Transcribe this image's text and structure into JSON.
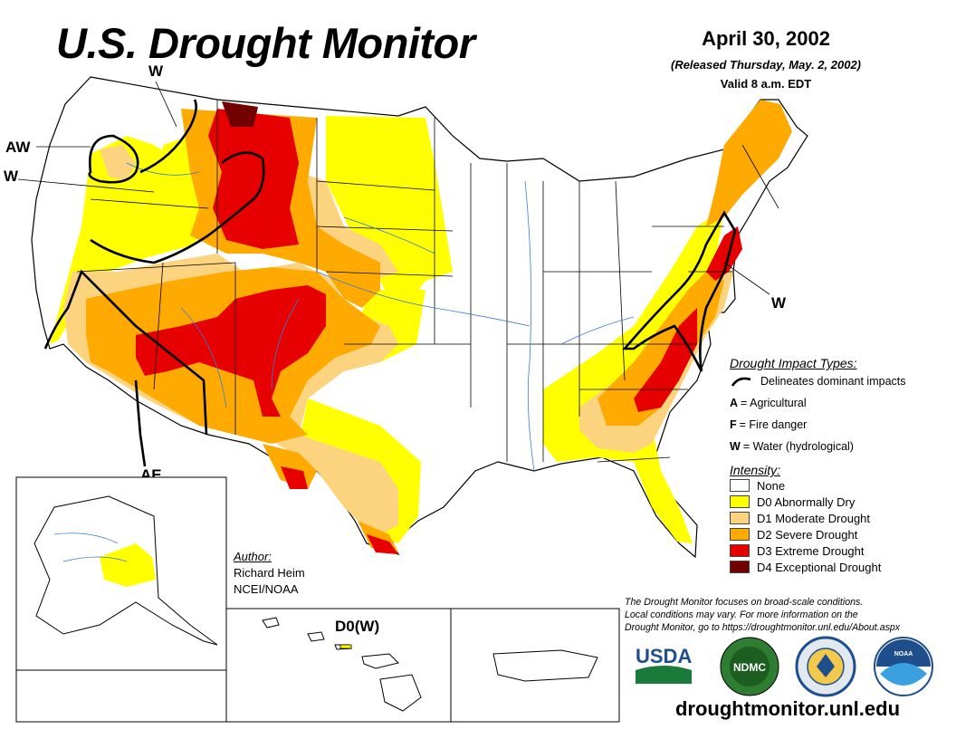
{
  "header": {
    "title": "U.S. Drought Monitor",
    "date": "April 30, 2002",
    "released": "(Released Thursday, May. 2, 2002)",
    "valid": "Valid 8 a.m. EDT"
  },
  "map": {
    "impact_labels": [
      "W",
      "AW",
      "W",
      "W",
      "AE"
    ],
    "hawaii_label": "D0(W)"
  },
  "legend": {
    "impact_title": "Drought Impact Types:",
    "impact_line_text": "Delineates dominant impacts",
    "impacts": [
      {
        "code": "A",
        "text": "= Agricultural"
      },
      {
        "code": "F",
        "text": "= Fire danger"
      },
      {
        "code": "W",
        "text": "= Water (hydrological)"
      }
    ],
    "intensity_title": "Intensity:",
    "categories": [
      {
        "label": "None",
        "color": "#ffffff"
      },
      {
        "label": "D0 Abnormally Dry",
        "color": "#ffff00"
      },
      {
        "label": "D1 Moderate Drought",
        "color": "#fcd37f"
      },
      {
        "label": "D2 Severe Drought",
        "color": "#ffaa00"
      },
      {
        "label": "D3 Extreme Drought",
        "color": "#e60000"
      },
      {
        "label": "D4 Exceptional Drought",
        "color": "#730000"
      }
    ]
  },
  "author": {
    "heading": "Author:",
    "name": "Richard Heim",
    "org": "NCEI/NOAA"
  },
  "note": {
    "line1": "The Drought Monitor focuses on broad-scale conditions.",
    "line2": "Local conditions may vary. For more information on the",
    "line3": "Drought Monitor, go to https://droughtmonitor.unl.edu/About.aspx"
  },
  "logos": {
    "usda": "USDA",
    "ndmc": "NDMC",
    "noaa": "NOAA"
  },
  "footer": {
    "website": "droughtmonitor.unl.edu"
  }
}
